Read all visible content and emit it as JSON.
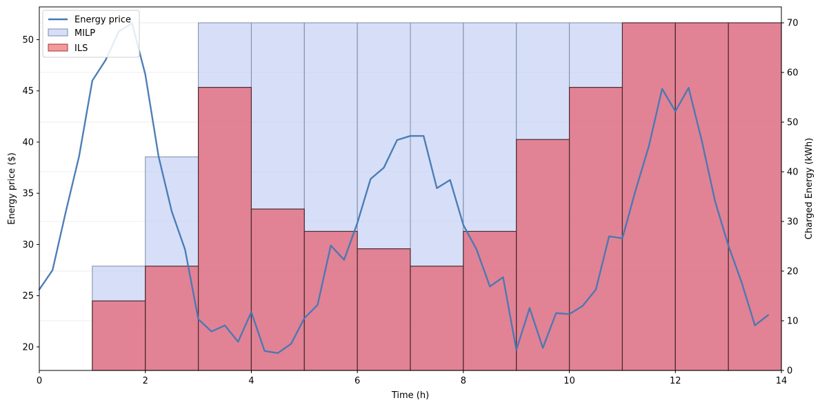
{
  "chart_data": {
    "type": "bar",
    "xlabel": "Time (h)",
    "ylabel_left": "Energy price ($)",
    "ylabel_right": "Charged Energy (kWh)",
    "xlim": [
      0,
      14
    ],
    "ylim_left": [
      17.7,
      53.2
    ],
    "ylim_right": [
      0,
      73.2
    ],
    "x_ticks": [
      "0",
      "2",
      "4",
      "6",
      "8",
      "10",
      "12",
      "14"
    ],
    "x_tick_values": [
      0,
      2,
      4,
      6,
      8,
      10,
      12,
      14
    ],
    "y_left_ticks": [
      "20",
      "25",
      "30",
      "35",
      "40",
      "45",
      "50"
    ],
    "y_left_tick_values": [
      20,
      25,
      30,
      35,
      40,
      45,
      50
    ],
    "y_right_ticks": [
      "0",
      "10",
      "20",
      "30",
      "40",
      "50",
      "60",
      "70"
    ],
    "y_right_tick_values": [
      0,
      10,
      20,
      30,
      40,
      50,
      60,
      70
    ],
    "legend_position": "top-left",
    "colors": {
      "price_line": "#4477b4",
      "milp_fill": "#c5d1f4",
      "ils_fill": "#e4606f"
    },
    "bar_intervals": [
      [
        1,
        2
      ],
      [
        2,
        3
      ],
      [
        3,
        4
      ],
      [
        4,
        5
      ],
      [
        5,
        6
      ],
      [
        6,
        7
      ],
      [
        7,
        8
      ],
      [
        8,
        9
      ],
      [
        9,
        10
      ],
      [
        10,
        11
      ],
      [
        11,
        12
      ],
      [
        12,
        13
      ],
      [
        13,
        14
      ]
    ],
    "series": [
      {
        "name": "Energy price",
        "kind": "line",
        "axis": "left",
        "x": [
          0,
          0.25,
          0.5,
          0.75,
          1.0,
          1.25,
          1.5,
          1.75,
          2.0,
          2.25,
          2.5,
          2.75,
          3.0,
          3.25,
          3.5,
          3.75,
          4.0,
          4.25,
          4.5,
          4.75,
          5.0,
          5.25,
          5.5,
          5.75,
          6.0,
          6.25,
          6.5,
          6.75,
          7.0,
          7.25,
          7.5,
          7.75,
          8.0,
          8.25,
          8.5,
          8.75,
          9.0,
          9.25,
          9.5,
          9.75,
          10.0,
          10.25,
          10.5,
          10.75,
          11.0,
          11.25,
          11.5,
          11.75,
          12.0,
          12.25,
          12.5,
          12.75,
          13.0,
          13.25,
          13.5,
          13.75
        ],
        "y": [
          25.6,
          27.5,
          33.2,
          38.6,
          46.0,
          48.0,
          50.8,
          51.6,
          46.6,
          38.6,
          33.2,
          29.5,
          22.7,
          21.5,
          22.1,
          20.5,
          23.4,
          19.6,
          19.4,
          20.3,
          22.8,
          24.1,
          29.9,
          28.5,
          32.1,
          36.4,
          37.5,
          40.2,
          40.6,
          40.6,
          35.5,
          36.3,
          31.9,
          29.5,
          25.9,
          26.8,
          19.7,
          23.8,
          19.9,
          23.3,
          23.2,
          24.0,
          25.6,
          30.8,
          30.6,
          35.3,
          39.6,
          45.2,
          43.0,
          45.3,
          40.1,
          34.2,
          29.9,
          26.3,
          22.1,
          23.1
        ]
      },
      {
        "name": "MILP",
        "kind": "bar",
        "axis": "right",
        "values": [
          21,
          43,
          70,
          70,
          70,
          70,
          70,
          70,
          70,
          70,
          70,
          70,
          70
        ]
      },
      {
        "name": "ILS",
        "kind": "bar",
        "axis": "right",
        "values": [
          14,
          21,
          57,
          32.5,
          28,
          24.5,
          21,
          28,
          46.5,
          57,
          70,
          70,
          70
        ]
      }
    ]
  }
}
